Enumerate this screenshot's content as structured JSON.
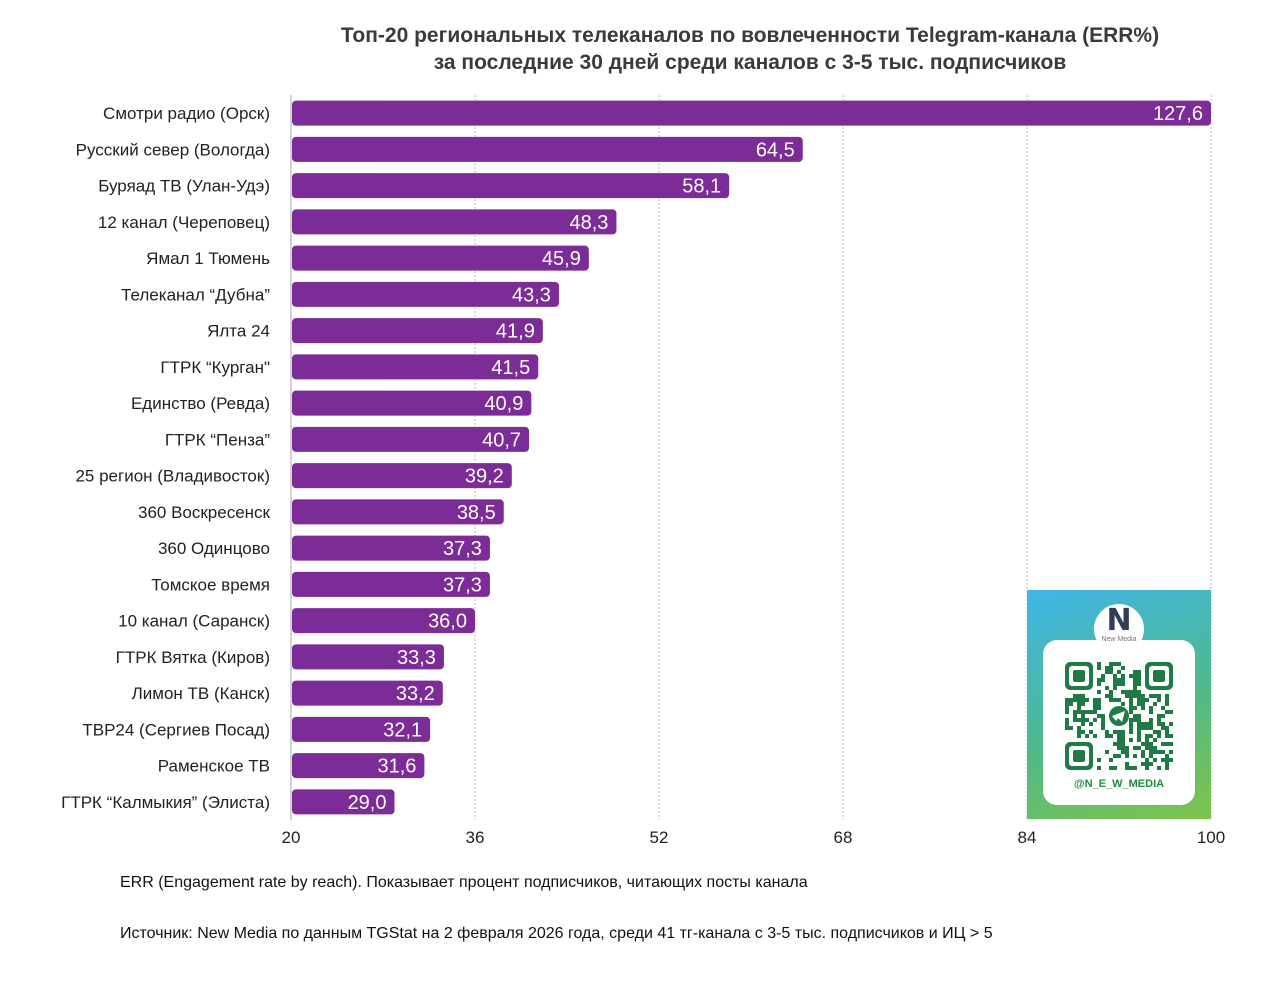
{
  "chart_data": {
    "type": "bar",
    "orientation": "horizontal",
    "title_lines": [
      "Топ-20 региональных телеканалов по вовлеченности Telegram-канала (ERR%)",
      "за последние 30 дней среди каналов с 3-5 тыс. подписчиков"
    ],
    "categories": [
      "Смотри радио (Орск)",
      "Русский север (Вологда)",
      "Буряад ТВ (Улан-Удэ)",
      "12 канал (Череповец)",
      "Ямал 1 Тюмень",
      "Телеканал “Дубна”",
      "Ялта 24",
      "ГТРК “Курган\"",
      "Единство (Ревда)",
      "ГТРК “Пенза”",
      "25 регион (Владивосток)",
      "360 Воскресенск",
      "360 Одинцово",
      "Томское время",
      "10 канал (Саранск)",
      "ГТРК Вятка (Киров)",
      "Лимон ТВ (Канск)",
      "ТВР24 (Сергиев Посад)",
      "Раменское ТВ",
      "ГТРК “Калмыкия” (Элиста)"
    ],
    "values": [
      127.6,
      64.5,
      58.1,
      48.3,
      45.9,
      43.3,
      41.9,
      41.5,
      40.9,
      40.7,
      39.2,
      38.5,
      37.3,
      37.3,
      36.0,
      33.3,
      33.2,
      32.1,
      31.6,
      29.0
    ],
    "value_labels": [
      "127,6",
      "64,5",
      "58,1",
      "48,3",
      "45,9",
      "43,3",
      "41,9",
      "41,5",
      "40,9",
      "40,7",
      "39,2",
      "38,5",
      "37,3",
      "37,3",
      "36,0",
      "33,3",
      "33,2",
      "32,1",
      "31,6",
      "29,0"
    ],
    "xlim": [
      20,
      100
    ],
    "xticks": [
      "20",
      "36",
      "52",
      "68",
      "84",
      "100"
    ],
    "grid": true,
    "bar_color": "#7b2c96",
    "label_color": "#ffffff"
  },
  "notes": {
    "err": "ERR (Engagement rate by reach). Показывает процент подписчиков, читающих посты канала",
    "source": "Источник: New Media по данным TGStat на 2 февраля 2026 года, среди 41 тг-канала с 3-5 тыс. подписчиков и ИЦ > 5"
  },
  "badge": {
    "logo_letter": "N",
    "logo_text": "New Media",
    "handle": "@N_E_W_MEDIA",
    "qr_icon": "telegram-icon"
  }
}
